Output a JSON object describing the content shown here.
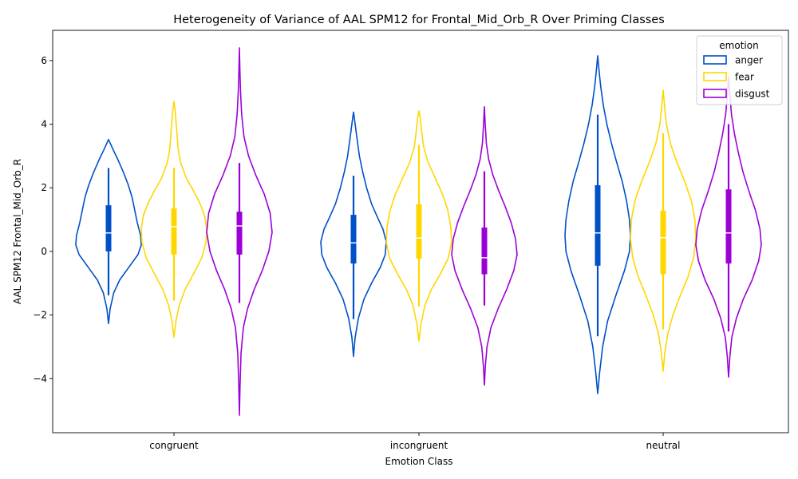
{
  "chart_data": {
    "type": "violin",
    "title": "Heterogeneity of Variance of AAL SPM12 for Frontal_Mid_Orb_R Over Priming Classes",
    "xlabel": "Emotion Class",
    "ylabel": "AAL SPM12 Frontal_Mid_Orb_R",
    "categories": [
      "congruent",
      "incongruent",
      "neutral"
    ],
    "ylim": [
      -5.7,
      6.95
    ],
    "yticks": [
      -4,
      -2,
      0,
      2,
      4,
      6
    ],
    "ytick_labels": [
      "−4",
      "−2",
      "0",
      "2",
      "4",
      "6"
    ],
    "grid": false,
    "legend": {
      "title": "emotion",
      "position": "top-right",
      "entries": [
        "anger",
        "fear",
        "disgust"
      ]
    },
    "series": [
      {
        "name": "anger",
        "color": "#0050c8",
        "groups": [
          {
            "min": -2.27,
            "max": 3.52,
            "q1": 0.0,
            "median": 0.58,
            "q3": 1.45,
            "whisker_low": -1.38,
            "whisker_high": 2.62,
            "profile": [
              [
                -2.27,
                0.0
              ],
              [
                -1.8,
                0.05
              ],
              [
                -1.3,
                0.16
              ],
              [
                -0.9,
                0.34
              ],
              [
                -0.5,
                0.62
              ],
              [
                -0.1,
                0.9
              ],
              [
                0.2,
                1.0
              ],
              [
                0.5,
                0.98
              ],
              [
                0.9,
                0.88
              ],
              [
                1.3,
                0.8
              ],
              [
                1.7,
                0.72
              ],
              [
                2.1,
                0.6
              ],
              [
                2.5,
                0.45
              ],
              [
                2.9,
                0.28
              ],
              [
                3.2,
                0.14
              ],
              [
                3.52,
                0.0
              ]
            ]
          },
          {
            "min": -3.3,
            "max": 4.38,
            "q1": -0.38,
            "median": 0.27,
            "q3": 1.15,
            "whisker_low": -2.13,
            "whisker_high": 2.38,
            "profile": [
              [
                -3.3,
                0.0
              ],
              [
                -2.7,
                0.05
              ],
              [
                -2.1,
                0.15
              ],
              [
                -1.5,
                0.32
              ],
              [
                -1.0,
                0.55
              ],
              [
                -0.5,
                0.82
              ],
              [
                -0.1,
                0.97
              ],
              [
                0.3,
                1.0
              ],
              [
                0.7,
                0.9
              ],
              [
                1.1,
                0.72
              ],
              [
                1.5,
                0.55
              ],
              [
                2.0,
                0.4
              ],
              [
                2.5,
                0.28
              ],
              [
                3.0,
                0.18
              ],
              [
                3.6,
                0.1
              ],
              [
                4.0,
                0.05
              ],
              [
                4.38,
                0.0
              ]
            ]
          },
          {
            "min": -4.47,
            "max": 6.15,
            "q1": -0.45,
            "median": 0.58,
            "q3": 2.08,
            "whisker_low": -2.67,
            "whisker_high": 4.3,
            "profile": [
              [
                -4.47,
                0.0
              ],
              [
                -3.8,
                0.06
              ],
              [
                -3.0,
                0.15
              ],
              [
                -2.2,
                0.3
              ],
              [
                -1.4,
                0.55
              ],
              [
                -0.6,
                0.82
              ],
              [
                0.0,
                0.97
              ],
              [
                0.5,
                1.0
              ],
              [
                1.0,
                0.97
              ],
              [
                1.6,
                0.88
              ],
              [
                2.2,
                0.75
              ],
              [
                2.8,
                0.58
              ],
              [
                3.4,
                0.42
              ],
              [
                4.0,
                0.28
              ],
              [
                4.6,
                0.17
              ],
              [
                5.2,
                0.09
              ],
              [
                5.7,
                0.04
              ],
              [
                6.15,
                0.0
              ]
            ]
          }
        ]
      },
      {
        "name": "fear",
        "color": "#ffd700",
        "groups": [
          {
            "min": -2.7,
            "max": 4.72,
            "q1": -0.1,
            "median": 0.78,
            "q3": 1.35,
            "whisker_low": -1.55,
            "whisker_high": 2.63,
            "profile": [
              [
                -2.7,
                0.0
              ],
              [
                -2.2,
                0.06
              ],
              [
                -1.7,
                0.16
              ],
              [
                -1.2,
                0.34
              ],
              [
                -0.7,
                0.6
              ],
              [
                -0.2,
                0.85
              ],
              [
                0.3,
                0.98
              ],
              [
                0.7,
                1.0
              ],
              [
                1.1,
                0.94
              ],
              [
                1.5,
                0.8
              ],
              [
                1.9,
                0.6
              ],
              [
                2.3,
                0.38
              ],
              [
                2.8,
                0.2
              ],
              [
                3.2,
                0.13
              ],
              [
                3.6,
                0.1
              ],
              [
                4.0,
                0.07
              ],
              [
                4.4,
                0.04
              ],
              [
                4.72,
                0.0
              ]
            ]
          },
          {
            "min": -2.82,
            "max": 4.42,
            "q1": -0.23,
            "median": 0.42,
            "q3": 1.48,
            "whisker_low": -1.73,
            "whisker_high": 3.35,
            "profile": [
              [
                -2.82,
                0.0
              ],
              [
                -2.3,
                0.06
              ],
              [
                -1.7,
                0.18
              ],
              [
                -1.2,
                0.38
              ],
              [
                -0.7,
                0.66
              ],
              [
                -0.2,
                0.9
              ],
              [
                0.3,
                1.0
              ],
              [
                0.8,
                0.97
              ],
              [
                1.3,
                0.88
              ],
              [
                1.8,
                0.72
              ],
              [
                2.3,
                0.5
              ],
              [
                2.8,
                0.28
              ],
              [
                3.3,
                0.14
              ],
              [
                3.8,
                0.08
              ],
              [
                4.2,
                0.04
              ],
              [
                4.42,
                0.0
              ]
            ]
          },
          {
            "min": -3.77,
            "max": 5.07,
            "q1": -0.72,
            "median": 0.43,
            "q3": 1.28,
            "whisker_low": -2.45,
            "whisker_high": 3.72,
            "profile": [
              [
                -3.77,
                0.0
              ],
              [
                -3.2,
                0.05
              ],
              [
                -2.6,
                0.14
              ],
              [
                -2.0,
                0.3
              ],
              [
                -1.4,
                0.52
              ],
              [
                -0.8,
                0.76
              ],
              [
                -0.2,
                0.93
              ],
              [
                0.4,
                1.0
              ],
              [
                1.0,
                0.97
              ],
              [
                1.6,
                0.86
              ],
              [
                2.2,
                0.66
              ],
              [
                2.8,
                0.42
              ],
              [
                3.4,
                0.22
              ],
              [
                4.0,
                0.1
              ],
              [
                4.6,
                0.04
              ],
              [
                5.07,
                0.0
              ]
            ]
          }
        ]
      },
      {
        "name": "disgust",
        "color": "#9b00d6",
        "groups": [
          {
            "min": -5.15,
            "max": 6.4,
            "q1": -0.1,
            "median": 0.8,
            "q3": 1.25,
            "whisker_low": -1.62,
            "whisker_high": 2.78,
            "profile": [
              [
                -5.15,
                0.0
              ],
              [
                -4.2,
                0.02
              ],
              [
                -3.2,
                0.05
              ],
              [
                -2.4,
                0.12
              ],
              [
                -1.8,
                0.25
              ],
              [
                -1.2,
                0.45
              ],
              [
                -0.6,
                0.7
              ],
              [
                0.0,
                0.9
              ],
              [
                0.6,
                1.0
              ],
              [
                1.2,
                0.94
              ],
              [
                1.8,
                0.76
              ],
              [
                2.4,
                0.5
              ],
              [
                3.0,
                0.28
              ],
              [
                3.6,
                0.14
              ],
              [
                4.3,
                0.07
              ],
              [
                5.0,
                0.035
              ],
              [
                5.7,
                0.015
              ],
              [
                6.4,
                0.0
              ]
            ]
          },
          {
            "min": -4.2,
            "max": 4.55,
            "q1": -0.72,
            "median": -0.2,
            "q3": 0.75,
            "whisker_low": -1.7,
            "whisker_high": 2.52,
            "profile": [
              [
                -4.2,
                0.0
              ],
              [
                -3.6,
                0.03
              ],
              [
                -3.0,
                0.08
              ],
              [
                -2.4,
                0.2
              ],
              [
                -1.8,
                0.42
              ],
              [
                -1.2,
                0.68
              ],
              [
                -0.6,
                0.9
              ],
              [
                -0.1,
                1.0
              ],
              [
                0.4,
                0.95
              ],
              [
                0.9,
                0.82
              ],
              [
                1.4,
                0.64
              ],
              [
                1.9,
                0.44
              ],
              [
                2.4,
                0.26
              ],
              [
                2.9,
                0.13
              ],
              [
                3.4,
                0.06
              ],
              [
                4.0,
                0.025
              ],
              [
                4.55,
                0.0
              ]
            ]
          },
          {
            "min": -3.95,
            "max": 5.5,
            "q1": -0.38,
            "median": 0.58,
            "q3": 1.95,
            "whisker_low": -2.52,
            "whisker_high": 4.0,
            "profile": [
              [
                -3.95,
                0.0
              ],
              [
                -3.3,
                0.04
              ],
              [
                -2.7,
                0.1
              ],
              [
                -2.1,
                0.24
              ],
              [
                -1.5,
                0.45
              ],
              [
                -0.9,
                0.72
              ],
              [
                -0.3,
                0.92
              ],
              [
                0.2,
                1.0
              ],
              [
                0.7,
                0.96
              ],
              [
                1.3,
                0.82
              ],
              [
                1.9,
                0.62
              ],
              [
                2.5,
                0.44
              ],
              [
                3.1,
                0.3
              ],
              [
                3.7,
                0.18
              ],
              [
                4.3,
                0.09
              ],
              [
                4.9,
                0.04
              ],
              [
                5.5,
                0.0
              ]
            ]
          }
        ]
      }
    ]
  }
}
